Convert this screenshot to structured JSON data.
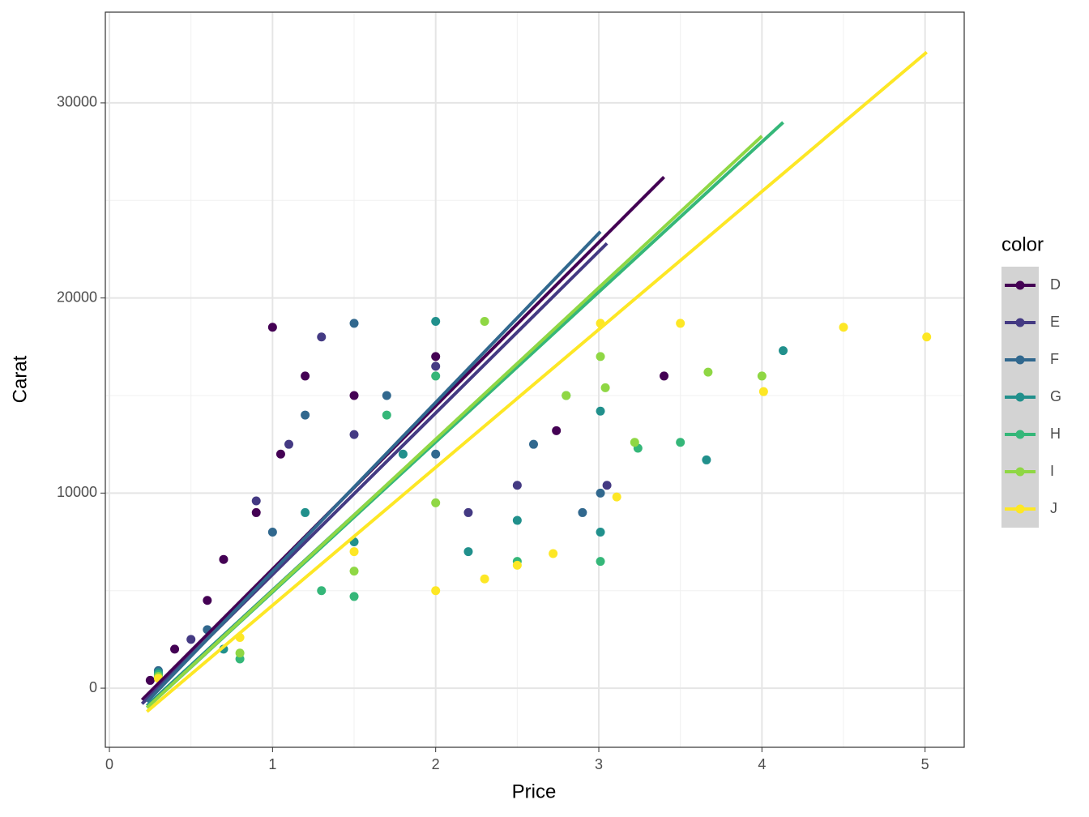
{
  "chart_data": {
    "type": "scatter",
    "x_label": "Price",
    "y_label": "Carat",
    "legend_title": "color",
    "xlim": [
      -0.025,
      5.24
    ],
    "ylim": [
      -3030,
      34650
    ],
    "xticks": [
      0,
      1,
      2,
      3,
      4,
      5
    ],
    "yticks": [
      0,
      10000,
      20000,
      30000
    ],
    "xminor": [
      0.5,
      1.5,
      2.5,
      3.5,
      4.5
    ],
    "yminor": [
      5000,
      15000,
      25000
    ],
    "grid": true,
    "legend": "right",
    "series": [
      {
        "name": "D",
        "color": "#440154",
        "x": [
          0.25,
          0.4,
          0.6,
          0.7,
          0.9,
          1.0,
          1.05,
          1.2,
          1.5,
          2.0,
          2.74,
          3.4
        ],
        "values": [
          400,
          2000,
          4500,
          6600,
          9000,
          18500,
          12000,
          16000,
          15000,
          17000,
          13200,
          16000
        ],
        "fit_x": [
          0.2,
          3.4
        ],
        "fit_y": [
          -600,
          26200
        ]
      },
      {
        "name": "E",
        "color": "#443A83",
        "x": [
          0.3,
          0.5,
          0.9,
          1.1,
          1.3,
          1.5,
          2.0,
          2.5,
          3.05,
          2.2
        ],
        "values": [
          700,
          2500,
          9600,
          12500,
          18000,
          13000,
          16500,
          10400,
          10400,
          9000
        ],
        "fit_x": [
          0.2,
          3.05
        ],
        "fit_y": [
          -800,
          22800
        ]
      },
      {
        "name": "F",
        "color": "#31688E",
        "x": [
          0.3,
          0.6,
          1.0,
          1.2,
          1.5,
          1.7,
          2.0,
          2.6,
          3.01,
          2.9
        ],
        "values": [
          900,
          3000,
          8000,
          14000,
          18700,
          15000,
          12000,
          12500,
          10000,
          9000
        ],
        "fit_x": [
          0.23,
          3.01
        ],
        "fit_y": [
          -700,
          23400
        ]
      },
      {
        "name": "G",
        "color": "#21908C",
        "x": [
          0.3,
          0.7,
          1.2,
          1.5,
          1.8,
          2.0,
          2.2,
          2.5,
          3.01,
          3.01,
          4.13,
          3.66
        ],
        "values": [
          800,
          2000,
          9000,
          7500,
          12000,
          18800,
          7000,
          8600,
          8000,
          14200,
          17300,
          11700
        ],
        "fit_x": [
          0.23,
          3.01
        ],
        "fit_y": [
          -900,
          20500
        ]
      },
      {
        "name": "H",
        "color": "#35B779",
        "x": [
          0.3,
          0.8,
          1.3,
          1.5,
          1.7,
          2.0,
          2.5,
          3.01,
          3.5,
          3.24,
          2.8
        ],
        "values": [
          700,
          1500,
          5000,
          4700,
          14000,
          16000,
          6500,
          6500,
          12600,
          12300,
          15000
        ],
        "fit_x": [
          0.23,
          4.13
        ],
        "fit_y": [
          -1000,
          29000
        ]
      },
      {
        "name": "I",
        "color": "#8FD744",
        "x": [
          0.3,
          0.8,
          1.5,
          2.0,
          2.3,
          2.8,
          3.01,
          3.67,
          4.0,
          3.22,
          3.04
        ],
        "values": [
          600,
          1800,
          6000,
          9500,
          18800,
          15000,
          17000,
          16200,
          16000,
          12600,
          15400
        ],
        "fit_x": [
          0.23,
          4.0
        ],
        "fit_y": [
          -1000,
          28300
        ]
      },
      {
        "name": "J",
        "color": "#FDE725",
        "x": [
          0.3,
          0.8,
          1.5,
          2.0,
          2.3,
          2.5,
          2.72,
          3.01,
          3.5,
          4.01,
          4.5,
          5.01,
          3.11
        ],
        "values": [
          500,
          2600,
          7000,
          5000,
          5600,
          6300,
          6900,
          18700,
          18700,
          15200,
          18500,
          18000,
          9800
        ],
        "fit_x": [
          0.23,
          5.01
        ],
        "fit_y": [
          -1200,
          32600
        ]
      }
    ]
  }
}
